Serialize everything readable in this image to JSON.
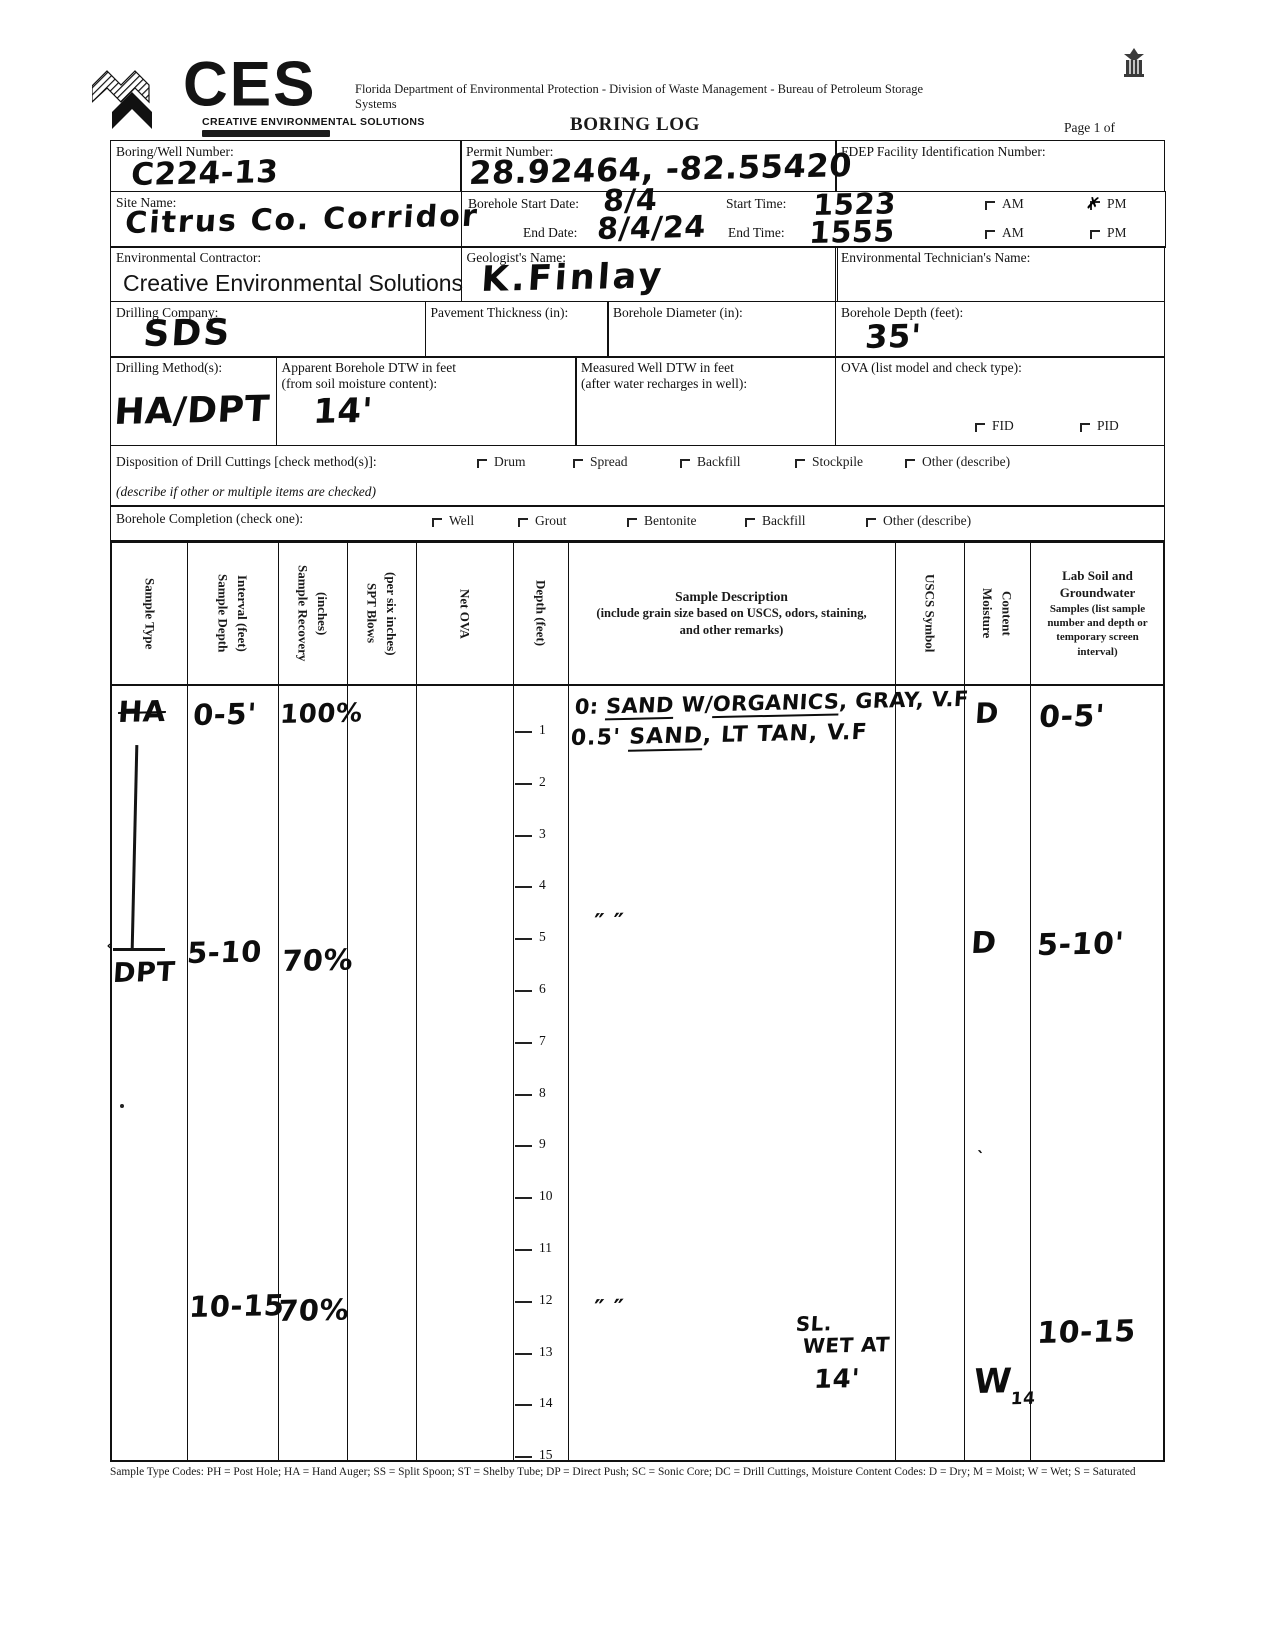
{
  "header": {
    "logo_text": "CES",
    "logo_subtitle": "CREATIVE ENVIRONMENTAL SOLUTIONS",
    "agency_line": "Florida Department of Environmental Protection - Division of Waste Management - Bureau of Petroleum Storage Systems",
    "title": "BORING LOG",
    "page_label": "Page 1 of"
  },
  "fields": {
    "boring_well_number": {
      "label": "Boring/Well Number:",
      "value": "C224-13"
    },
    "permit_number": {
      "label": "Permit Number:",
      "value": "28.92464, -82.55420"
    },
    "fdep_id": {
      "label": "FDEP Facility Identification Number:",
      "value": ""
    },
    "site_name": {
      "label": "Site Name:",
      "value": "Citrus Co. Corridor"
    },
    "borehole_start_date": {
      "label": "Borehole Start Date:",
      "value": "8/4"
    },
    "start_time": {
      "label": "Start Time:",
      "value": "1523"
    },
    "end_date": {
      "label": "End Date:",
      "value": "8/4/24"
    },
    "end_time": {
      "label": "End Time:",
      "value": "1555"
    },
    "am_label": "AM",
    "pm_label": "PM",
    "pm_check_mark": "✗",
    "environmental_contractor": {
      "label": "Environmental Contractor:",
      "value": "Creative Environmental Solutions"
    },
    "geologist_name": {
      "label": "Geologist's Name:",
      "value": "K.Finlay"
    },
    "environmental_technician": {
      "label": "Environmental Technician's Name:",
      "value": ""
    },
    "drilling_company": {
      "label": "Drilling Company:",
      "value": "SDS"
    },
    "pavement_thickness": {
      "label": "Pavement Thickness (in):",
      "value": ""
    },
    "borehole_diameter": {
      "label": "Borehole Diameter (in):",
      "value": ""
    },
    "borehole_depth": {
      "label": "Borehole Depth (feet):",
      "value": "35'"
    },
    "drilling_methods": {
      "label": "Drilling Method(s):",
      "value": "HA/DPT"
    },
    "apparent_dtw": {
      "label1": "Apparent Borehole DTW in feet",
      "label2": "(from soil moisture content):",
      "value": "14'"
    },
    "measured_dtw": {
      "label1": "Measured Well DTW in feet",
      "label2": "(after water recharges in well):",
      "value": ""
    },
    "ova": {
      "label": "OVA (list model and check type):",
      "fid_label": "FID",
      "pid_label": "PID"
    }
  },
  "disposition": {
    "label": "Disposition of Drill Cuttings [check method(s)]:",
    "options": [
      "Drum",
      "Spread",
      "Backfill",
      "Stockpile",
      "Other (describe)"
    ],
    "note": "(describe if other or multiple items are checked)"
  },
  "completion": {
    "label": "Borehole Completion (check one):",
    "options": [
      "Well",
      "Grout",
      "Bentonite",
      "Backfill",
      "Other (describe)"
    ]
  },
  "table": {
    "headers": {
      "sample_type": "Sample Type",
      "depth_interval": "Sample Depth\nInterval (feet)",
      "recovery": "Sample Recovery\n(inches)",
      "spt_blows": "SPT Blows\n(per six inches)",
      "net_ova": "Net OVA",
      "depth": "Depth (feet)",
      "description_title": "Sample Description",
      "description_sub": "(include grain size based on USCS, odors, staining,\nand other remarks)",
      "uscs": "USCS Symbol",
      "moisture": "Moisture\nContent",
      "lab_title": "Lab Soil and\nGroundwater",
      "lab_sub": "Samples (list sample\nnumber and depth or\ntemporary screen\ninterval)"
    },
    "depth_ticks": [
      "1",
      "2",
      "3",
      "4",
      "5",
      "6",
      "7",
      "8",
      "9",
      "10",
      "11",
      "12",
      "13",
      "14",
      "15"
    ],
    "entries": {
      "sample_type_1": "HA",
      "sample_type_2": "DPT",
      "interval_1": "0-5'",
      "interval_2": "5-10",
      "interval_3": "10-15",
      "recovery_1": "100%",
      "recovery_2": "70%",
      "recovery_3": "70%",
      "desc_1a_pre": "0: ",
      "desc_1a_u1": "SAND",
      "desc_1a_mid": " W/",
      "desc_1a_u2": "ORGANICS",
      "desc_1a_post": ", GRAY, V.F",
      "desc_1b_pre": "0.5' ",
      "desc_1b_u1": "SAND",
      "desc_1b_post": ", LT TAN, V.F",
      "ditto_5": "″        ″",
      "ditto_13": "″      ″",
      "wet_note_1": "SL.",
      "wet_note_2": "WET AT",
      "wet_note_3": "14'",
      "moisture_1": "D",
      "moisture_2": "D",
      "moisture_3_main": "W",
      "moisture_3_sub": "14",
      "lab_1": "0-5'",
      "lab_2": "5-10'",
      "lab_3": "10-15"
    }
  },
  "footer": "Sample Type Codes:   PH = Post Hole;   HA = Hand Auger;   SS = Split Spoon;   ST = Shelby Tube;   DP = Direct Push;   SC = Sonic Core;   DC = Drill Cuttings, Moisture Content Codes:   D = Dry;   M = Moist;   W = Wet;   S = Saturated"
}
